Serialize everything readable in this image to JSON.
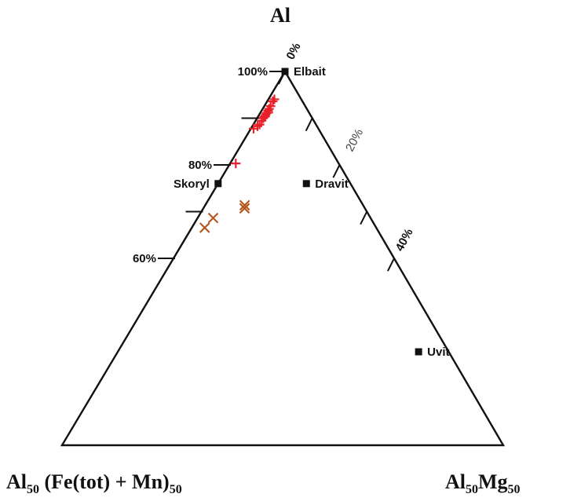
{
  "chart_data": {
    "type": "ternary",
    "vertices": {
      "top": "Al",
      "bottom_left": {
        "base": "Al",
        "sub1": "50",
        "mid": " (Fe(tot) + Mn)",
        "sub2": "50"
      },
      "bottom_right": {
        "base1": "Al",
        "sub1": "50",
        "base2": "Mg",
        "sub2": "50"
      }
    },
    "left_axis_labels": [
      {
        "label": "100%",
        "value": 100
      },
      {
        "label": "80%",
        "value": 80
      },
      {
        "label": "60%",
        "value": 60
      }
    ],
    "right_axis_labels": [
      {
        "label": "0%",
        "value": 0
      },
      {
        "label": "20%",
        "value": 20
      },
      {
        "label": "40%",
        "value": 40
      }
    ],
    "left_ticks": [
      100,
      90,
      80,
      70,
      60
    ],
    "right_ticks": [
      0,
      10,
      20,
      30,
      40
    ],
    "end_members": [
      {
        "name": "Elbait",
        "t": 0.0,
        "s": 0.0,
        "label_side": "right"
      },
      {
        "name": "Skoryl",
        "t": 0.3,
        "s": 0.0,
        "label_side": "left"
      },
      {
        "name": "Dravit",
        "t": 0.3,
        "s": 0.667,
        "label_side": "right"
      },
      {
        "name": "Uvit",
        "t": 0.75,
        "s": 0.909,
        "label_side": "right"
      }
    ],
    "series": [
      {
        "marker": "plus",
        "color": "#e8202a",
        "points": [
          {
            "t": 0.0745,
            "s": 0.183
          },
          {
            "t": 0.08,
            "s": 0.16
          },
          {
            "t": 0.093,
            "s": 0.155
          },
          {
            "t": 0.1,
            "s": 0.145
          },
          {
            "t": 0.105,
            "s": 0.14
          },
          {
            "t": 0.111,
            "s": 0.133
          },
          {
            "t": 0.115,
            "s": 0.126
          },
          {
            "t": 0.121,
            "s": 0.118
          },
          {
            "t": 0.125,
            "s": 0.112
          },
          {
            "t": 0.132,
            "s": 0.104
          },
          {
            "t": 0.142,
            "s": 0.1
          },
          {
            "t": 0.1465,
            "s": 0.08
          },
          {
            "t": 0.153,
            "s": 0.04
          },
          {
            "t": 0.11,
            "s": 0.16
          },
          {
            "t": 0.12,
            "s": 0.13
          },
          {
            "t": 0.246,
            "s": 0.052
          }
        ]
      },
      {
        "marker": "x",
        "color": "#b5561f",
        "points": [
          {
            "t": 0.358,
            "s": 0.25
          },
          {
            "t": 0.366,
            "s": 0.255
          },
          {
            "t": 0.392,
            "s": 0.09
          },
          {
            "t": 0.418,
            "s": 0.07
          }
        ]
      }
    ]
  }
}
